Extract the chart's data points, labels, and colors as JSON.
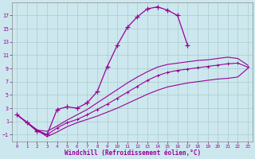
{
  "xlabel": "Windchill (Refroidissement éolien,°C)",
  "bg_color": "#cce8ee",
  "line_color": "#990099",
  "grid_color": "#aacccc",
  "xlim": [
    -0.5,
    23.5
  ],
  "ylim": [
    -2.0,
    19.0
  ],
  "xticks": [
    0,
    1,
    2,
    3,
    4,
    5,
    6,
    7,
    8,
    9,
    10,
    11,
    12,
    13,
    14,
    15,
    16,
    17,
    18,
    19,
    20,
    21,
    22,
    23
  ],
  "yticks": [
    -1,
    1,
    3,
    5,
    7,
    9,
    11,
    13,
    15,
    17
  ],
  "s1x": [
    0,
    1,
    2,
    3,
    4,
    5,
    6,
    7,
    8,
    9,
    10,
    11,
    12,
    13,
    14,
    15,
    16,
    17
  ],
  "s1y": [
    2.0,
    0.8,
    -0.5,
    -1.0,
    2.8,
    3.2,
    3.0,
    3.8,
    5.5,
    9.3,
    12.5,
    15.2,
    16.8,
    18.0,
    18.3,
    17.8,
    17.0,
    12.5
  ],
  "s2x": [
    0,
    2,
    3,
    4,
    5,
    6,
    7,
    8,
    9,
    10,
    11,
    12,
    13,
    14,
    15,
    16,
    17,
    18,
    19,
    20,
    21,
    22,
    23
  ],
  "s2y": [
    2.0,
    -0.3,
    -1.3,
    -0.6,
    0.2,
    0.8,
    1.3,
    1.8,
    2.4,
    3.0,
    3.7,
    4.4,
    5.1,
    5.7,
    6.2,
    6.5,
    6.8,
    7.0,
    7.2,
    7.4,
    7.5,
    7.7,
    9.0
  ],
  "s3x": [
    0,
    2,
    3,
    4,
    5,
    6,
    7,
    8,
    9,
    10,
    11,
    12,
    13,
    14,
    15,
    16,
    17,
    18,
    19,
    20,
    21,
    22,
    23
  ],
  "s3y": [
    2.0,
    -0.3,
    -1.0,
    0.0,
    0.8,
    1.3,
    2.0,
    2.8,
    3.6,
    4.5,
    5.4,
    6.3,
    7.2,
    7.9,
    8.4,
    8.7,
    8.9,
    9.1,
    9.3,
    9.5,
    9.7,
    9.8,
    9.2
  ],
  "s4x": [
    0,
    2,
    3,
    4,
    5,
    6,
    7,
    8,
    9,
    10,
    11,
    12,
    13,
    14,
    15,
    16,
    17,
    18,
    19,
    20,
    21,
    22,
    23
  ],
  "s4y": [
    2.0,
    -0.3,
    -0.5,
    0.3,
    1.2,
    2.0,
    2.8,
    3.8,
    4.8,
    5.8,
    6.8,
    7.7,
    8.5,
    9.2,
    9.6,
    9.8,
    10.0,
    10.2,
    10.3,
    10.5,
    10.7,
    10.5,
    9.5
  ]
}
